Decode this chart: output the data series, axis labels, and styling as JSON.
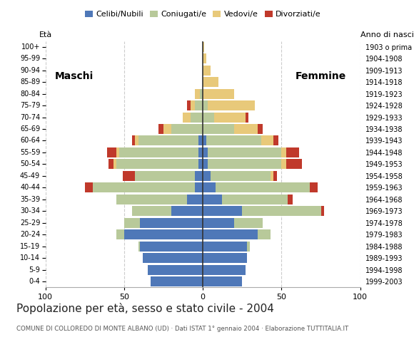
{
  "title": "Popolazione per età, sesso e stato civile - 2004",
  "subtitle": "COMUNE DI COLLOREDO DI MONTE ALBANO (UD) · Dati ISTAT 1° gennaio 2004 · Elaborazione TUTTITALIA.IT",
  "legend_labels": [
    "Celibi/Nubili",
    "Coniugati/e",
    "Vedovi/e",
    "Divorziati/e"
  ],
  "colors": {
    "celibi": "#4f78b8",
    "coniugati": "#b8c99a",
    "vedovi": "#e8c97a",
    "divorziati": "#c0392b"
  },
  "age_groups_bottom_to_top": [
    "0-4",
    "5-9",
    "10-14",
    "15-19",
    "20-24",
    "25-29",
    "30-34",
    "35-39",
    "40-44",
    "45-49",
    "50-54",
    "55-59",
    "60-64",
    "65-69",
    "70-74",
    "75-79",
    "80-84",
    "85-89",
    "90-94",
    "95-99",
    "100+"
  ],
  "birth_years_bottom_to_top": [
    "1999-2003",
    "1994-1998",
    "1989-1993",
    "1984-1988",
    "1979-1983",
    "1974-1978",
    "1969-1973",
    "1964-1968",
    "1959-1963",
    "1954-1958",
    "1949-1953",
    "1944-1948",
    "1939-1943",
    "1934-1938",
    "1929-1933",
    "1924-1928",
    "1919-1923",
    "1914-1918",
    "1909-1913",
    "1904-1908",
    "1903 o prima"
  ],
  "males": {
    "celibi": [
      33,
      35,
      38,
      40,
      50,
      40,
      20,
      10,
      5,
      5,
      3,
      3,
      3,
      0,
      0,
      0,
      0,
      0,
      0,
      0,
      0
    ],
    "coniugati": [
      0,
      0,
      0,
      1,
      5,
      10,
      25,
      45,
      65,
      38,
      52,
      50,
      38,
      20,
      8,
      5,
      2,
      0,
      0,
      0,
      0
    ],
    "vedovi": [
      0,
      0,
      0,
      0,
      0,
      0,
      0,
      0,
      0,
      0,
      2,
      2,
      2,
      5,
      5,
      3,
      3,
      0,
      0,
      0,
      0
    ],
    "divorziati": [
      0,
      0,
      0,
      0,
      0,
      0,
      0,
      0,
      5,
      8,
      3,
      6,
      2,
      3,
      0,
      2,
      0,
      0,
      0,
      0,
      0
    ]
  },
  "females": {
    "nubili": [
      25,
      27,
      28,
      28,
      35,
      20,
      25,
      12,
      8,
      5,
      3,
      3,
      2,
      0,
      0,
      0,
      0,
      0,
      0,
      0,
      0
    ],
    "coniugate": [
      0,
      0,
      0,
      2,
      8,
      18,
      50,
      42,
      60,
      38,
      47,
      47,
      35,
      20,
      7,
      3,
      0,
      0,
      0,
      0,
      0
    ],
    "vedove": [
      0,
      0,
      0,
      0,
      0,
      0,
      0,
      0,
      0,
      2,
      3,
      3,
      8,
      15,
      20,
      30,
      20,
      10,
      5,
      2,
      1
    ],
    "divorziate": [
      0,
      0,
      0,
      0,
      0,
      0,
      2,
      3,
      5,
      2,
      10,
      8,
      3,
      3,
      2,
      0,
      0,
      0,
      0,
      0,
      0
    ]
  },
  "xlim": 100,
  "bg_color": "#ffffff",
  "grid_color": "#cccccc",
  "bar_height": 0.85
}
